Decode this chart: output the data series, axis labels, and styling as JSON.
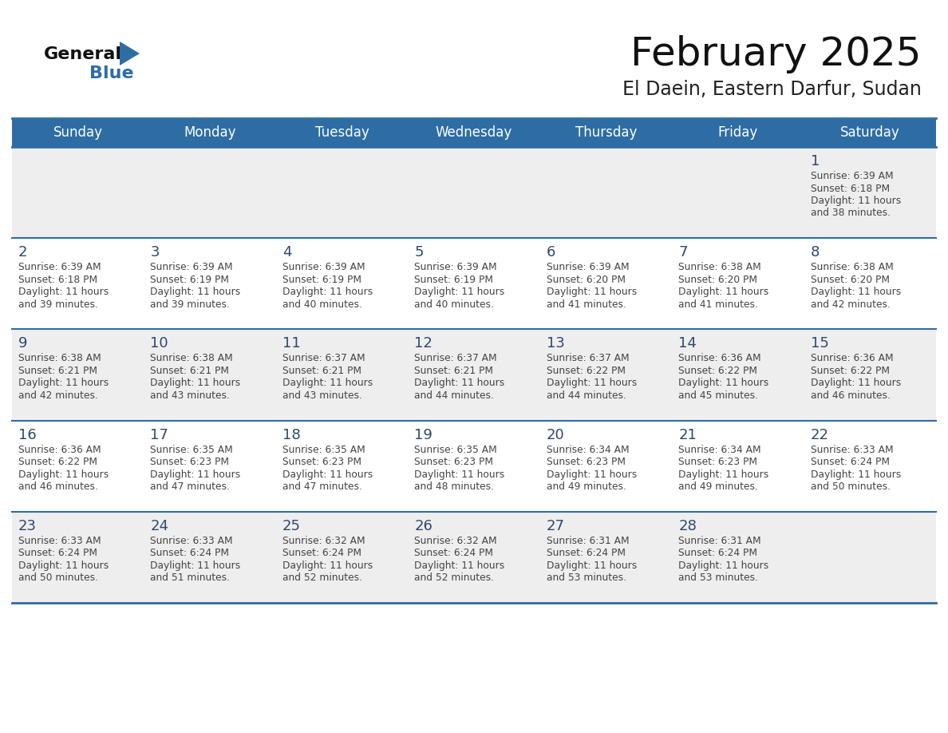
{
  "title": "February 2025",
  "subtitle": "El Daein, Eastern Darfur, Sudan",
  "days_of_week": [
    "Sunday",
    "Monday",
    "Tuesday",
    "Wednesday",
    "Thursday",
    "Friday",
    "Saturday"
  ],
  "header_bg": "#2E6DA4",
  "header_text": "#FFFFFF",
  "row0_bg": "#EEEEEE",
  "row1_bg": "#FFFFFF",
  "row2_bg": "#EEEEEE",
  "row3_bg": "#FFFFFF",
  "row4_bg": "#EEEEEE",
  "separator_color": "#2E6DA4",
  "day_number_color": "#2E4870",
  "text_color": "#444444",
  "logo_general_color": "#111111",
  "logo_blue_color": "#2E6DA4",
  "calendar_data": [
    {
      "day": 1,
      "col": 6,
      "row": 0,
      "sunrise": "6:39 AM",
      "sunset": "6:18 PM",
      "dl1": "11 hours",
      "dl2": "and 38 minutes."
    },
    {
      "day": 2,
      "col": 0,
      "row": 1,
      "sunrise": "6:39 AM",
      "sunset": "6:18 PM",
      "dl1": "11 hours",
      "dl2": "and 39 minutes."
    },
    {
      "day": 3,
      "col": 1,
      "row": 1,
      "sunrise": "6:39 AM",
      "sunset": "6:19 PM",
      "dl1": "11 hours",
      "dl2": "and 39 minutes."
    },
    {
      "day": 4,
      "col": 2,
      "row": 1,
      "sunrise": "6:39 AM",
      "sunset": "6:19 PM",
      "dl1": "11 hours",
      "dl2": "and 40 minutes."
    },
    {
      "day": 5,
      "col": 3,
      "row": 1,
      "sunrise": "6:39 AM",
      "sunset": "6:19 PM",
      "dl1": "11 hours",
      "dl2": "and 40 minutes."
    },
    {
      "day": 6,
      "col": 4,
      "row": 1,
      "sunrise": "6:39 AM",
      "sunset": "6:20 PM",
      "dl1": "11 hours",
      "dl2": "and 41 minutes."
    },
    {
      "day": 7,
      "col": 5,
      "row": 1,
      "sunrise": "6:38 AM",
      "sunset": "6:20 PM",
      "dl1": "11 hours",
      "dl2": "and 41 minutes."
    },
    {
      "day": 8,
      "col": 6,
      "row": 1,
      "sunrise": "6:38 AM",
      "sunset": "6:20 PM",
      "dl1": "11 hours",
      "dl2": "and 42 minutes."
    },
    {
      "day": 9,
      "col": 0,
      "row": 2,
      "sunrise": "6:38 AM",
      "sunset": "6:21 PM",
      "dl1": "11 hours",
      "dl2": "and 42 minutes."
    },
    {
      "day": 10,
      "col": 1,
      "row": 2,
      "sunrise": "6:38 AM",
      "sunset": "6:21 PM",
      "dl1": "11 hours",
      "dl2": "and 43 minutes."
    },
    {
      "day": 11,
      "col": 2,
      "row": 2,
      "sunrise": "6:37 AM",
      "sunset": "6:21 PM",
      "dl1": "11 hours",
      "dl2": "and 43 minutes."
    },
    {
      "day": 12,
      "col": 3,
      "row": 2,
      "sunrise": "6:37 AM",
      "sunset": "6:21 PM",
      "dl1": "11 hours",
      "dl2": "and 44 minutes."
    },
    {
      "day": 13,
      "col": 4,
      "row": 2,
      "sunrise": "6:37 AM",
      "sunset": "6:22 PM",
      "dl1": "11 hours",
      "dl2": "and 44 minutes."
    },
    {
      "day": 14,
      "col": 5,
      "row": 2,
      "sunrise": "6:36 AM",
      "sunset": "6:22 PM",
      "dl1": "11 hours",
      "dl2": "and 45 minutes."
    },
    {
      "day": 15,
      "col": 6,
      "row": 2,
      "sunrise": "6:36 AM",
      "sunset": "6:22 PM",
      "dl1": "11 hours",
      "dl2": "and 46 minutes."
    },
    {
      "day": 16,
      "col": 0,
      "row": 3,
      "sunrise": "6:36 AM",
      "sunset": "6:22 PM",
      "dl1": "11 hours",
      "dl2": "and 46 minutes."
    },
    {
      "day": 17,
      "col": 1,
      "row": 3,
      "sunrise": "6:35 AM",
      "sunset": "6:23 PM",
      "dl1": "11 hours",
      "dl2": "and 47 minutes."
    },
    {
      "day": 18,
      "col": 2,
      "row": 3,
      "sunrise": "6:35 AM",
      "sunset": "6:23 PM",
      "dl1": "11 hours",
      "dl2": "and 47 minutes."
    },
    {
      "day": 19,
      "col": 3,
      "row": 3,
      "sunrise": "6:35 AM",
      "sunset": "6:23 PM",
      "dl1": "11 hours",
      "dl2": "and 48 minutes."
    },
    {
      "day": 20,
      "col": 4,
      "row": 3,
      "sunrise": "6:34 AM",
      "sunset": "6:23 PM",
      "dl1": "11 hours",
      "dl2": "and 49 minutes."
    },
    {
      "day": 21,
      "col": 5,
      "row": 3,
      "sunrise": "6:34 AM",
      "sunset": "6:23 PM",
      "dl1": "11 hours",
      "dl2": "and 49 minutes."
    },
    {
      "day": 22,
      "col": 6,
      "row": 3,
      "sunrise": "6:33 AM",
      "sunset": "6:24 PM",
      "dl1": "11 hours",
      "dl2": "and 50 minutes."
    },
    {
      "day": 23,
      "col": 0,
      "row": 4,
      "sunrise": "6:33 AM",
      "sunset": "6:24 PM",
      "dl1": "11 hours",
      "dl2": "and 50 minutes."
    },
    {
      "day": 24,
      "col": 1,
      "row": 4,
      "sunrise": "6:33 AM",
      "sunset": "6:24 PM",
      "dl1": "11 hours",
      "dl2": "and 51 minutes."
    },
    {
      "day": 25,
      "col": 2,
      "row": 4,
      "sunrise": "6:32 AM",
      "sunset": "6:24 PM",
      "dl1": "11 hours",
      "dl2": "and 52 minutes."
    },
    {
      "day": 26,
      "col": 3,
      "row": 4,
      "sunrise": "6:32 AM",
      "sunset": "6:24 PM",
      "dl1": "11 hours",
      "dl2": "and 52 minutes."
    },
    {
      "day": 27,
      "col": 4,
      "row": 4,
      "sunrise": "6:31 AM",
      "sunset": "6:24 PM",
      "dl1": "11 hours",
      "dl2": "and 53 minutes."
    },
    {
      "day": 28,
      "col": 5,
      "row": 4,
      "sunrise": "6:31 AM",
      "sunset": "6:24 PM",
      "dl1": "11 hours",
      "dl2": "and 53 minutes."
    }
  ],
  "num_rows": 5,
  "num_cols": 7,
  "row_bgs": [
    "#EEEEEE",
    "#FFFFFF",
    "#EEEEEE",
    "#FFFFFF",
    "#EEEEEE"
  ]
}
